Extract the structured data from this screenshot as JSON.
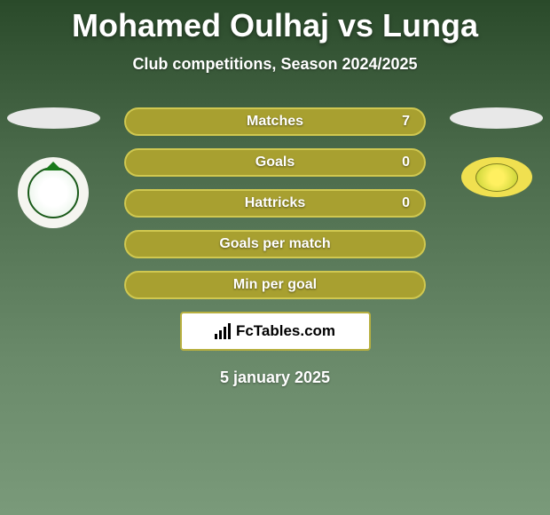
{
  "title": "Mohamed Oulhaj vs Lunga",
  "subtitle": "Club competitions, Season 2024/2025",
  "stats": {
    "rows": [
      {
        "label": "Matches",
        "value": "7"
      },
      {
        "label": "Goals",
        "value": "0"
      },
      {
        "label": "Hattricks",
        "value": "0"
      },
      {
        "label": "Goals per match",
        "value": ""
      },
      {
        "label": "Min per goal",
        "value": ""
      }
    ],
    "row_bg": "#a8a030",
    "row_border": "#d0c850",
    "text_color": "#ffffff"
  },
  "brand": {
    "text": "FcTables.com"
  },
  "date": "5 january 2025",
  "clubs": {
    "left_bg": "#f5f5f0",
    "right_bg": "#f0e050"
  },
  "colors": {
    "title": "#ffffff",
    "bg_top": "#2a4a2a",
    "bg_bottom": "#7a9a7a"
  }
}
